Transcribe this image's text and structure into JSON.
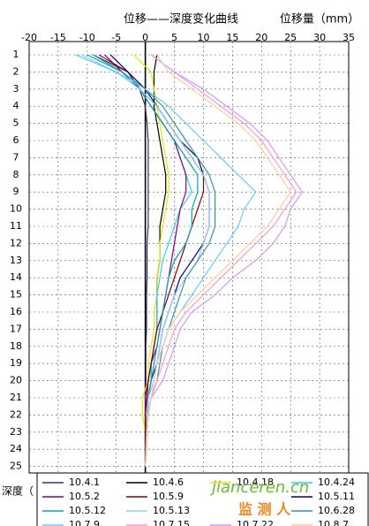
{
  "chart_data": {
    "type": "line",
    "title": "位移——深度变化曲线",
    "x_label": "位移量（mm）",
    "y_label": "深度（",
    "xlim": [
      -20,
      35
    ],
    "xticks": [
      -20,
      -15,
      -10,
      -5,
      0,
      5,
      10,
      15,
      20,
      25,
      30,
      35
    ],
    "categories": [
      1,
      2,
      3,
      4,
      5,
      6,
      7,
      8,
      9,
      10,
      11,
      12,
      13,
      14,
      15,
      16,
      17,
      18,
      19,
      20,
      21,
      22,
      23,
      24,
      25
    ],
    "grid": true,
    "legend": "bottom",
    "watermark": [
      "jianceren.cn",
      "监 测 人"
    ],
    "series": [
      {
        "name": "10.4.1",
        "color": "#333366",
        "values": [
          -9,
          -3,
          -1,
          0,
          0.3,
          0.5,
          0.5,
          0.5,
          0.5,
          0.5,
          0.5,
          0.3,
          0.3,
          0.3,
          0.2,
          0.2,
          0.2,
          0.1,
          0.1,
          0.1,
          0,
          0,
          0,
          0,
          0
        ]
      },
      {
        "name": "10.4.6",
        "color": "#000000",
        "values": [
          2,
          1.5,
          1.5,
          1.5,
          2,
          2.5,
          3,
          3.5,
          3.5,
          3,
          2.5,
          2.5,
          2.5,
          2,
          2,
          2,
          2,
          1.5,
          1,
          1,
          0.5,
          0.5,
          0.3,
          0.2,
          0
        ]
      },
      {
        "name": "10.4.18",
        "color": "#e6e600",
        "values": [
          -2,
          1,
          1.5,
          2,
          2.5,
          3,
          3.5,
          4,
          4,
          3.5,
          3,
          2.5,
          2.5,
          2,
          2,
          1.5,
          1.5,
          1,
          0.5,
          0.5,
          -0.5,
          -0.5,
          0,
          0,
          0
        ]
      },
      {
        "name": "10.4.24",
        "color": "#33ccff",
        "values": [
          -12,
          -5,
          -1,
          1,
          3,
          5,
          6,
          7,
          8,
          6,
          5,
          4,
          3,
          2.5,
          2,
          2,
          2,
          1.5,
          1,
          1,
          0.5,
          0.5,
          0.3,
          0.2,
          0
        ]
      },
      {
        "name": "10.5.2",
        "color": "#800080",
        "values": [
          -8,
          -3,
          -1,
          1,
          3,
          5,
          6,
          7,
          7,
          6,
          5.5,
          5,
          4.5,
          4,
          3.5,
          3,
          2.5,
          2,
          1,
          0.5,
          0,
          0,
          0,
          0,
          0
        ]
      },
      {
        "name": "10.5.9",
        "color": "#800000",
        "values": [
          -7,
          -4,
          -1,
          2,
          4,
          6,
          8,
          10,
          10,
          9,
          8,
          7,
          6,
          5,
          4,
          3,
          2,
          1.5,
          1,
          0.5,
          0.3,
          0,
          0,
          0,
          0
        ]
      },
      {
        "name": "10.5.11",
        "color": "#000080",
        "values": [
          -6,
          -3,
          0,
          2,
          4,
          6,
          9,
          10,
          11,
          11,
          11,
          10,
          8,
          6,
          5,
          4,
          3,
          2.5,
          2,
          1,
          0.5,
          0.3,
          0.2,
          0.1,
          0
        ]
      },
      {
        "name": "10.5.12",
        "color": "#00aaaa",
        "values": [
          -10,
          -4,
          -1,
          1,
          3,
          5,
          7,
          9,
          9,
          8,
          8,
          7,
          5,
          4,
          3.5,
          3,
          2.5,
          2,
          1.5,
          1,
          0.5,
          0.3,
          0.2,
          0.1,
          0
        ]
      },
      {
        "name": "10.5.13",
        "color": "#99ccff",
        "values": [
          -11,
          -5,
          -1,
          2,
          4,
          6,
          8,
          10,
          11,
          11,
          11,
          10,
          9,
          7,
          5,
          4,
          3,
          2.5,
          2,
          1.5,
          0.5,
          0.3,
          0.2,
          0.1,
          0
        ]
      },
      {
        "name": "10.6.28",
        "color": "#339999",
        "values": [
          -9,
          -4,
          0,
          3,
          5,
          7,
          9,
          11,
          12,
          12,
          12,
          11,
          9,
          7,
          6,
          5,
          4,
          3,
          2.5,
          2,
          1,
          0.5,
          0.3,
          0.2,
          0
        ]
      },
      {
        "name": "10.7.9",
        "color": "#66ccff",
        "values": [
          -12,
          -5,
          0,
          4,
          7,
          10,
          13,
          16,
          19,
          17,
          16,
          14,
          12,
          10,
          8,
          6,
          4,
          3,
          2,
          1.5,
          1,
          0.5,
          0.3,
          0.2,
          0
        ]
      },
      {
        "name": "10.7.15",
        "color": "#ff99cc",
        "values": [
          1,
          5,
          9,
          13,
          17,
          20,
          22,
          24,
          26,
          24,
          22,
          19,
          16,
          13,
          10,
          7,
          5,
          4,
          3,
          2,
          1,
          0.5,
          0.3,
          0.2,
          0
        ]
      },
      {
        "name": "10.7.22",
        "color": "#cc99ff",
        "values": [
          1,
          5,
          10,
          14,
          18,
          21,
          23,
          25,
          27,
          25,
          24,
          22,
          19,
          15,
          12,
          8,
          6,
          5,
          4,
          3,
          1,
          0.5,
          0.3,
          0.2,
          0
        ]
      },
      {
        "name": "10.8.7",
        "color": "#ffcc99",
        "values": [
          2,
          4,
          8,
          12,
          16,
          19,
          21,
          23,
          25,
          23,
          21,
          18,
          15,
          12,
          9,
          6,
          4,
          3,
          2,
          1.5,
          1,
          0.5,
          0.3,
          0.2,
          0
        ]
      }
    ]
  }
}
